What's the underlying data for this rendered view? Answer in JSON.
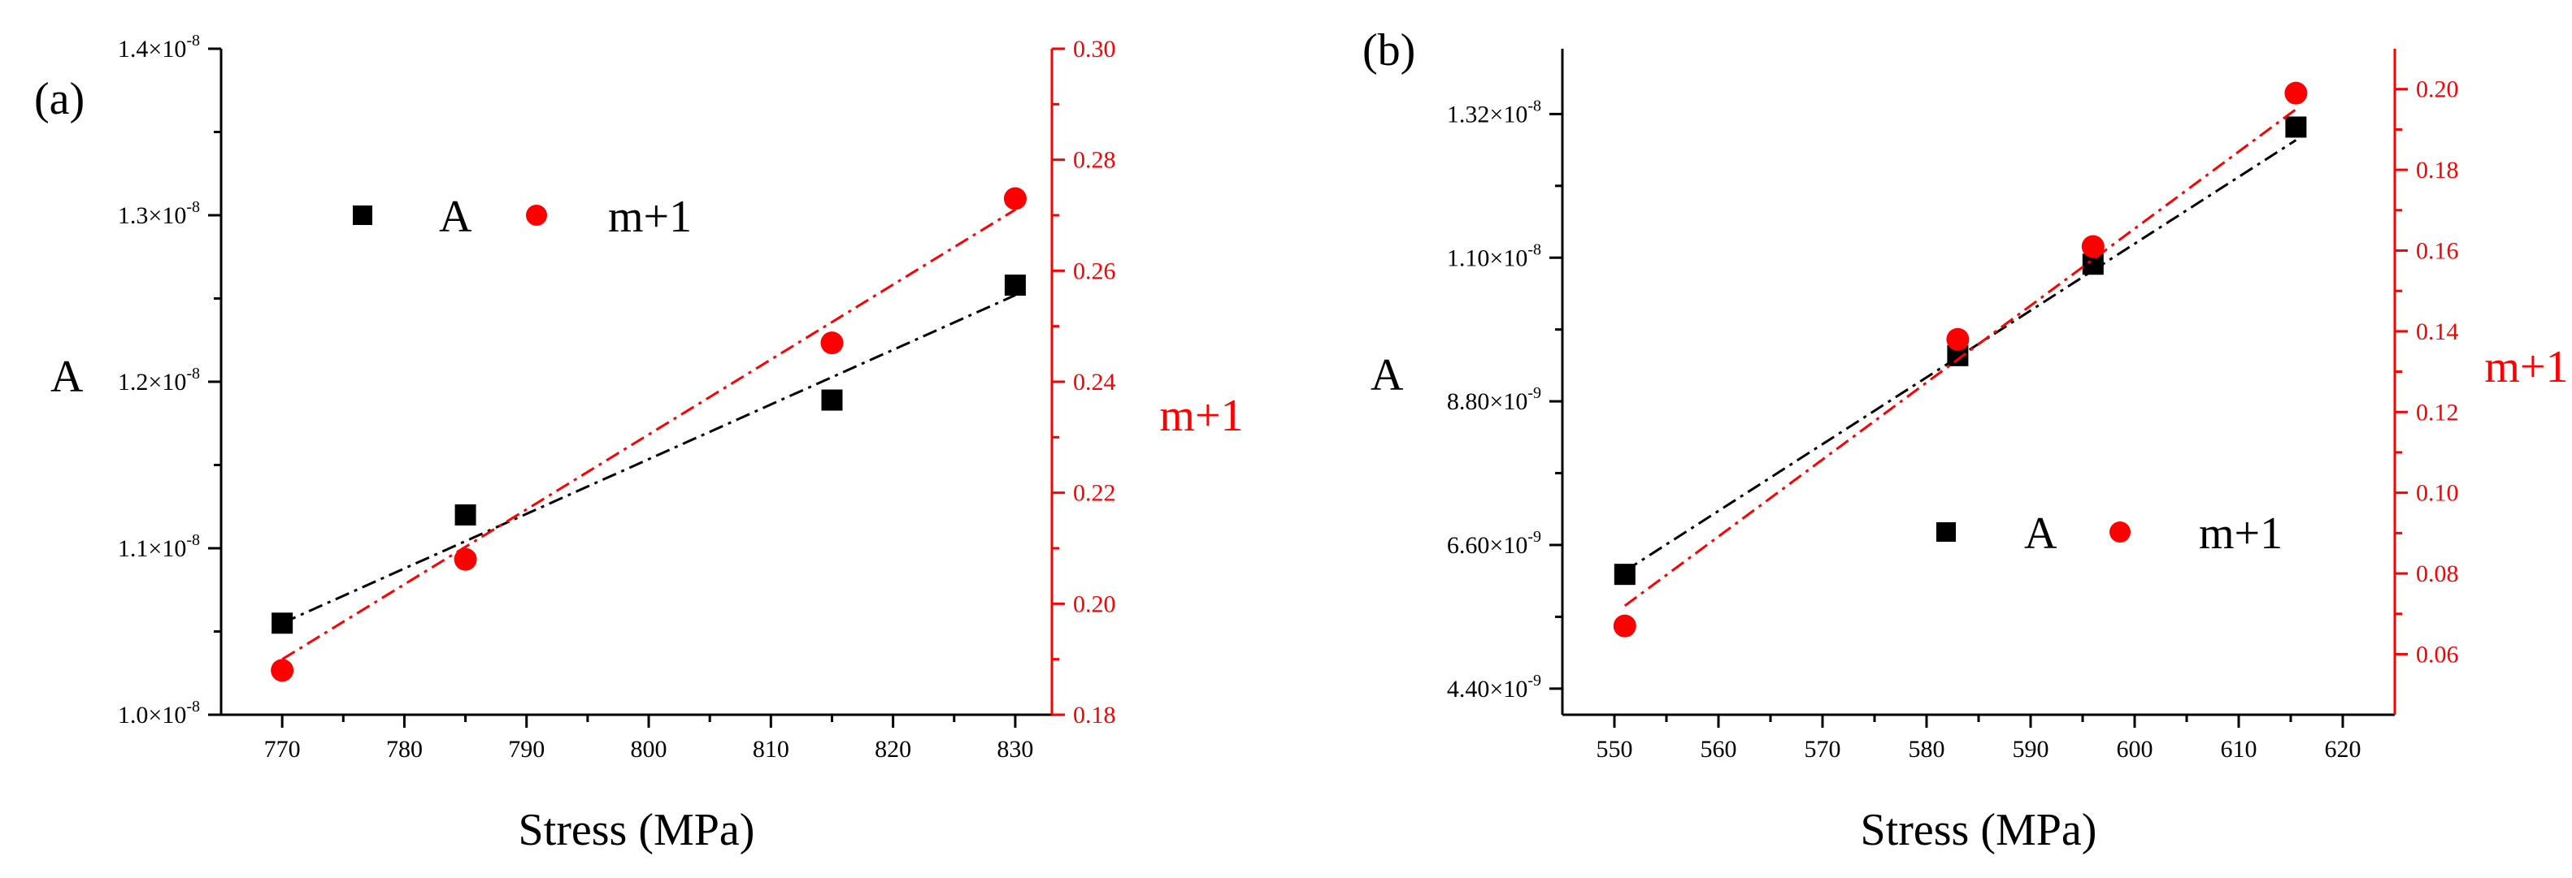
{
  "colors": {
    "black": "#000000",
    "red": "#ff0000"
  },
  "chart_data": [
    {
      "panel_label": "(a)",
      "type": "scatter",
      "xlabel": "Stress (MPa)",
      "ylabel_left": "A",
      "ylabel_right": "m+1",
      "xlim": [
        765,
        833
      ],
      "xticks": [
        770,
        780,
        790,
        800,
        810,
        820,
        830
      ],
      "xtick_labels": [
        "770",
        "780",
        "790",
        "800",
        "810",
        "820",
        "830"
      ],
      "ylim_left": [
        1.0,
        1.4
      ],
      "yticks_left": [
        1.0,
        1.1,
        1.2,
        1.3,
        1.4
      ],
      "ytick_mantissas_left": [
        "1.0×10",
        "1.1×10",
        "1.2×10",
        "1.3×10",
        "1.4×10"
      ],
      "ytick_exponents_left": [
        "-8",
        "-8",
        "-8",
        "-8",
        "-8"
      ],
      "left_axis_scale": "×10^-8",
      "ylim_right": [
        0.18,
        0.3
      ],
      "yticks_right": [
        0.18,
        0.2,
        0.22,
        0.24,
        0.26,
        0.28,
        0.3
      ],
      "ytick_labels_right": [
        "0.18",
        "0.20",
        "0.22",
        "0.24",
        "0.26",
        "0.28",
        "0.30"
      ],
      "legend": {
        "entries": [
          "A",
          "m+1"
        ],
        "position": "top-left"
      },
      "series": [
        {
          "name": "A",
          "axis": "left",
          "marker": "square",
          "color": "#000000",
          "x": [
            770,
            785,
            815,
            830
          ],
          "y": [
            1.055,
            1.12,
            1.189,
            1.258
          ],
          "fit": {
            "x": [
              770,
              830
            ],
            "y": [
              1.055,
              1.252
            ]
          }
        },
        {
          "name": "m+1",
          "axis": "right",
          "marker": "circle",
          "color": "#ff0000",
          "x": [
            770,
            785,
            815,
            830
          ],
          "y": [
            0.188,
            0.208,
            0.247,
            0.273
          ],
          "fit": {
            "x": [
              770,
              830
            ],
            "y": [
              0.19,
              0.271
            ]
          }
        }
      ]
    },
    {
      "panel_label": "(b)",
      "type": "scatter",
      "xlabel": "Stress (MPa)",
      "ylabel_left": "A",
      "ylabel_right": "m+1",
      "xlim": [
        545,
        625
      ],
      "xticks": [
        550,
        560,
        570,
        580,
        590,
        600,
        610,
        620
      ],
      "xtick_labels": [
        "550",
        "560",
        "570",
        "580",
        "590",
        "600",
        "610",
        "620"
      ],
      "ylim_left": [
        4.0,
        14.2
      ],
      "yticks_left": [
        4.4,
        6.6,
        8.8,
        11.0,
        13.2
      ],
      "ytick_mantissas_left": [
        "4.40×10",
        "6.60×10",
        "8.80×10",
        "1.10×10",
        "1.32×10"
      ],
      "ytick_exponents_left": [
        "-9",
        "-9",
        "-9",
        "-8",
        "-8"
      ],
      "left_axis_scale": "×10^-9",
      "ylim_right": [
        0.045,
        0.21
      ],
      "yticks_right": [
        0.06,
        0.08,
        0.1,
        0.12,
        0.14,
        0.16,
        0.18,
        0.2
      ],
      "ytick_labels_right": [
        "0.06",
        "0.08",
        "0.10",
        "0.12",
        "0.14",
        "0.16",
        "0.18",
        "0.20"
      ],
      "legend": {
        "entries": [
          "A",
          "m+1"
        ],
        "position": "center-right"
      },
      "series": [
        {
          "name": "A",
          "axis": "left",
          "marker": "square",
          "color": "#000000",
          "x": [
            551,
            583,
            596,
            615.5
          ],
          "y": [
            6.15,
            9.5,
            10.9,
            13.0
          ],
          "fit": {
            "x": [
              551,
              615.5
            ],
            "y": [
              6.2,
              12.8
            ]
          }
        },
        {
          "name": "m+1",
          "axis": "right",
          "marker": "circle",
          "color": "#ff0000",
          "x": [
            551,
            583,
            596,
            615.5
          ],
          "y": [
            0.067,
            0.138,
            0.161,
            0.199
          ],
          "fit": {
            "x": [
              551,
              615.5
            ],
            "y": [
              0.072,
              0.195
            ]
          }
        }
      ]
    }
  ]
}
